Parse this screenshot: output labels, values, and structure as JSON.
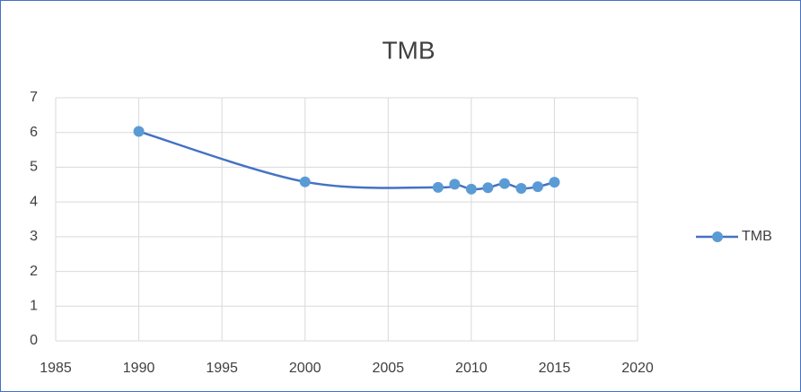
{
  "chart_data": {
    "type": "scatter",
    "smooth": true,
    "title": "TMB",
    "x": [
      1990,
      2000,
      2008,
      2009,
      2010,
      2011,
      2012,
      2013,
      2014,
      2015
    ],
    "series": [
      {
        "name": "TMB",
        "color": "#4472c4",
        "marker_color": "#5b9bd5",
        "values": [
          6.03,
          4.58,
          4.42,
          4.51,
          4.37,
          4.41,
          4.53,
          4.39,
          4.44,
          4.57
        ]
      }
    ],
    "xlim": [
      1985,
      2020
    ],
    "xticks": [
      1985,
      1990,
      1995,
      2000,
      2005,
      2010,
      2015,
      2020
    ],
    "ylim": [
      0,
      7
    ],
    "yticks": [
      0,
      1,
      2,
      3,
      4,
      5,
      6,
      7
    ],
    "grid": true,
    "legend": "right"
  }
}
